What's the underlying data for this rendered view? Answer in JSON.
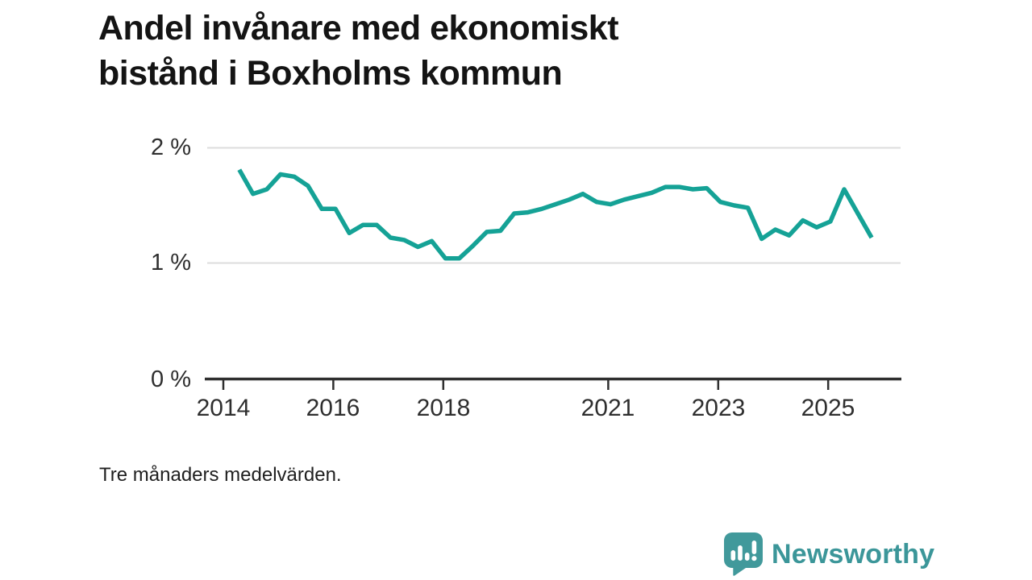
{
  "title": {
    "line1": "Andel invånare med ekonomiskt",
    "line2": "bistånd i Boxholms kommun"
  },
  "footnote": "Tre månaders medelvärden.",
  "logo": {
    "text": "Newsworthy",
    "icon": "newsworthy-speech-bubble-bar-chart-icon"
  },
  "colors": {
    "line": "#15a296",
    "grid": "#dcdcdc",
    "axis": "#2f2f2f",
    "tick_text": "#2e2e2e",
    "title_text": "#141414",
    "logo_teal": "#41999b"
  },
  "chart_data": {
    "type": "line",
    "title": "Andel invånare med ekonomiskt bistånd i Boxholms kommun",
    "subtitle": "Tre månaders medelvärden.",
    "unit": "%",
    "xlabel": "",
    "ylabel": "",
    "ylim": [
      0,
      2
    ],
    "xlim": [
      2013.7,
      2026.1
    ],
    "grid": "horizontal",
    "legend": "none",
    "yticks": [
      {
        "value": 0,
        "label": "0 %"
      },
      {
        "value": 1,
        "label": "1 %"
      },
      {
        "value": 2,
        "label": "2 %"
      }
    ],
    "xticks": [
      {
        "value": 2014,
        "label": "2014"
      },
      {
        "value": 2016,
        "label": "2016"
      },
      {
        "value": 2018,
        "label": "2018"
      },
      {
        "value": 2021,
        "label": "2021"
      },
      {
        "value": 2023,
        "label": "2023"
      },
      {
        "value": 2025,
        "label": "2025"
      }
    ],
    "series": [
      {
        "name": "Boxholms kommun",
        "x": [
          2014.29,
          2014.54,
          2014.79,
          2015.04,
          2015.29,
          2015.54,
          2015.79,
          2016.04,
          2016.29,
          2016.54,
          2016.79,
          2017.04,
          2017.29,
          2017.54,
          2017.79,
          2018.04,
          2018.29,
          2018.54,
          2018.79,
          2019.04,
          2019.29,
          2019.54,
          2019.79,
          2020.04,
          2020.29,
          2020.54,
          2020.79,
          2021.04,
          2021.29,
          2021.54,
          2021.79,
          2022.04,
          2022.29,
          2022.54,
          2022.79,
          2023.04,
          2023.29,
          2023.54,
          2023.79,
          2024.04,
          2024.29,
          2024.54,
          2024.79,
          2025.04,
          2025.29,
          2025.54,
          2025.79
        ],
        "values": [
          1.81,
          1.6,
          1.64,
          1.77,
          1.75,
          1.67,
          1.47,
          1.47,
          1.26,
          1.33,
          1.33,
          1.22,
          1.2,
          1.14,
          1.19,
          1.04,
          1.04,
          1.15,
          1.27,
          1.28,
          1.43,
          1.44,
          1.47,
          1.51,
          1.55,
          1.6,
          1.53,
          1.51,
          1.55,
          1.58,
          1.61,
          1.66,
          1.66,
          1.64,
          1.65,
          1.53,
          1.5,
          1.48,
          1.21,
          1.29,
          1.24,
          1.37,
          1.31,
          1.36,
          1.64,
          1.43,
          1.22
        ]
      }
    ]
  }
}
